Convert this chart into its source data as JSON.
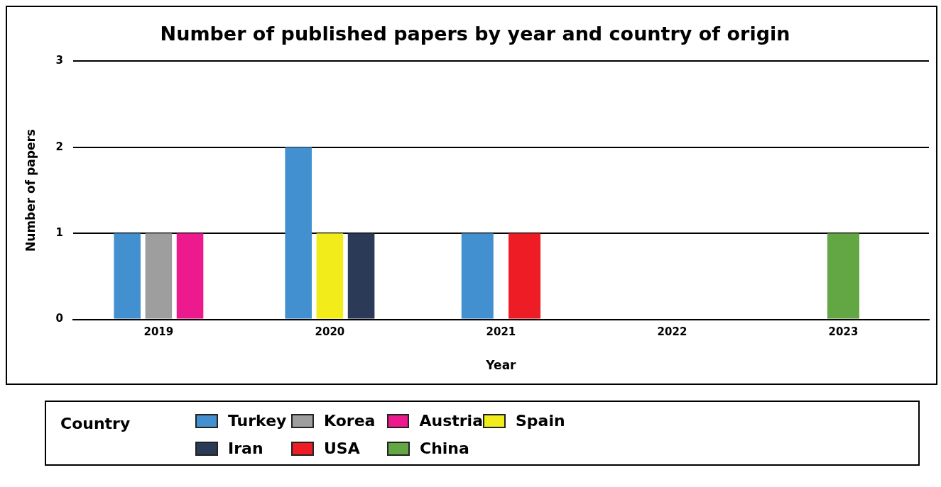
{
  "chart_data": {
    "type": "bar",
    "title": "Number of published papers by year and country of origin",
    "xlabel": "Year",
    "ylabel": "Number of papers",
    "legend_title": "Country",
    "categories": [
      "2019",
      "2020",
      "2021",
      "2022",
      "2023"
    ],
    "series": [
      {
        "name": "Turkey",
        "color": "#4390d0",
        "values": [
          1,
          2,
          1,
          null,
          null
        ]
      },
      {
        "name": "Korea",
        "color": "#9e9e9e",
        "values": [
          1,
          null,
          null,
          null,
          null
        ]
      },
      {
        "name": "Austria",
        "color": "#ec1a8c",
        "values": [
          1,
          null,
          null,
          null,
          null
        ]
      },
      {
        "name": "Spain",
        "color": "#f2ec1a",
        "values": [
          null,
          1,
          null,
          null,
          null
        ]
      },
      {
        "name": "Iran",
        "color": "#2b3a57",
        "values": [
          null,
          1,
          null,
          null,
          null
        ]
      },
      {
        "name": "USA",
        "color": "#ee1c24",
        "values": [
          null,
          null,
          1,
          null,
          null
        ]
      },
      {
        "name": "China",
        "color": "#62a744",
        "values": [
          null,
          null,
          null,
          null,
          1
        ]
      }
    ],
    "ylim": [
      0,
      3
    ],
    "yticks": [
      0,
      1,
      2,
      3
    ],
    "grid": "y",
    "legend": "bottom"
  }
}
